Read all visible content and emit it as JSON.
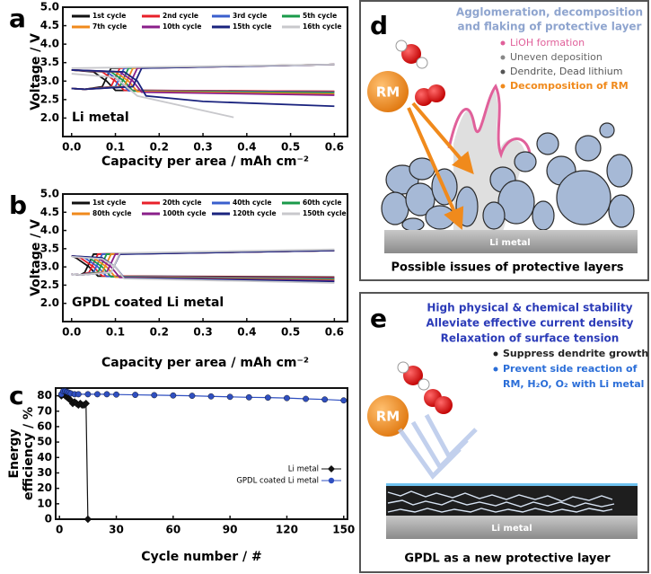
{
  "chart_data": [
    {
      "type": "line",
      "panel_label": "a",
      "xlabel": "Capacity per area / mAh cm⁻²",
      "ylabel": "Voltage / V",
      "annotation": "Li metal",
      "legend": "top",
      "xlim": [
        -0.02,
        0.63
      ],
      "ylim": [
        1.5,
        5.0
      ],
      "xticks": [
        {
          "value": 0,
          "label": "0.0"
        },
        0.1,
        0.2,
        0.3,
        0.4,
        0.5,
        0.6
      ],
      "yticks": [
        {
          "value": 2,
          "label": "2.0"
        },
        2.5,
        {
          "value": 3,
          "label": "3.0"
        },
        3.5,
        {
          "value": 4,
          "label": "4.0"
        },
        4.5,
        {
          "value": 5,
          "label": "5.0"
        }
      ],
      "series": [
        {
          "name": "1st cycle",
          "color": "#111111",
          "x": [
            0,
            0.05,
            0.08,
            0.1,
            0.6,
            null,
            0,
            0.03,
            0.07,
            0.09,
            0.6
          ],
          "values": [
            3.3,
            3.25,
            3.0,
            2.75,
            2.72,
            null,
            2.8,
            2.78,
            2.85,
            3.35,
            3.45
          ]
        },
        {
          "name": "2nd cycle",
          "color": "#e8202a",
          "x": [
            0,
            0.07,
            0.1,
            0.12,
            0.6,
            null,
            0,
            0.03,
            0.09,
            0.11,
            0.6
          ],
          "values": [
            3.3,
            3.25,
            3.0,
            2.75,
            2.72,
            null,
            2.8,
            2.78,
            2.85,
            3.35,
            3.45
          ]
        },
        {
          "name": "3rd cycle",
          "color": "#3a5fcd",
          "x": [
            0,
            0.08,
            0.11,
            0.13,
            0.6,
            null,
            0,
            0.03,
            0.1,
            0.12,
            0.6
          ],
          "values": [
            3.3,
            3.25,
            3.0,
            2.74,
            2.7,
            null,
            2.8,
            2.78,
            2.85,
            3.35,
            3.45
          ]
        },
        {
          "name": "5th cycle",
          "color": "#1a9a4a",
          "x": [
            0,
            0.09,
            0.12,
            0.14,
            0.6,
            null,
            0,
            0.03,
            0.11,
            0.13,
            0.6
          ],
          "values": [
            3.3,
            3.25,
            3.0,
            2.73,
            2.68,
            null,
            2.8,
            2.78,
            2.85,
            3.35,
            3.45
          ]
        },
        {
          "name": "7th cycle",
          "color": "#f08a1c",
          "x": [
            0,
            0.1,
            0.13,
            0.15,
            0.6,
            null,
            0,
            0.03,
            0.12,
            0.14,
            0.6
          ],
          "values": [
            3.3,
            3.25,
            3.0,
            2.72,
            2.65,
            null,
            2.8,
            2.78,
            2.85,
            3.35,
            3.45
          ]
        },
        {
          "name": "10th cycle",
          "color": "#8a1f8a",
          "x": [
            0,
            0.11,
            0.14,
            0.16,
            0.6,
            null,
            0,
            0.03,
            0.13,
            0.15,
            0.6
          ],
          "values": [
            3.3,
            3.25,
            3.0,
            2.7,
            2.62,
            null,
            2.8,
            2.78,
            2.85,
            3.35,
            3.45
          ]
        },
        {
          "name": "15th cycle",
          "color": "#1a237e",
          "x": [
            0,
            0.12,
            0.15,
            0.17,
            0.3,
            0.6,
            null,
            0,
            0.03,
            0.14,
            0.16,
            0.6
          ],
          "values": [
            3.3,
            3.25,
            3.0,
            2.6,
            2.45,
            2.32,
            null,
            2.8,
            2.78,
            2.85,
            3.35,
            3.45
          ]
        },
        {
          "name": "16th cycle",
          "color": "#c8c8cc",
          "x": [
            0,
            0.1,
            0.15,
            0.37,
            null,
            0,
            0.6
          ],
          "values": [
            3.2,
            3.1,
            2.6,
            2.02,
            null,
            3.35,
            3.45
          ]
        }
      ]
    },
    {
      "type": "line",
      "panel_label": "b",
      "xlabel": "Capacity per area / mAh cm⁻²",
      "ylabel": "Voltage / V",
      "annotation": "GPDL coated Li metal",
      "legend": "top",
      "xlim": [
        -0.02,
        0.63
      ],
      "ylim": [
        1.5,
        5.0
      ],
      "xticks": [
        {
          "value": 0,
          "label": "0.0"
        },
        0.1,
        0.2,
        0.3,
        0.4,
        0.5,
        0.6
      ],
      "yticks": [
        {
          "value": 2,
          "label": "2.0"
        },
        2.5,
        {
          "value": 3,
          "label": "3.0"
        },
        3.5,
        {
          "value": 4,
          "label": "4.0"
        },
        4.5,
        {
          "value": 5,
          "label": "5.0"
        }
      ],
      "series": [
        {
          "name": "1st cycle",
          "color": "#111111",
          "x": [
            0,
            0.01,
            0.04,
            0.06,
            0.6,
            null,
            0,
            0.02,
            0.03,
            0.05,
            0.6
          ],
          "values": [
            3.3,
            3.25,
            3.0,
            2.75,
            2.72,
            null,
            2.8,
            2.78,
            2.85,
            3.35,
            3.45
          ]
        },
        {
          "name": "20th cycle",
          "color": "#e8202a",
          "x": [
            0,
            0.02,
            0.05,
            0.07,
            0.6,
            null,
            0,
            0.02,
            0.04,
            0.06,
            0.6
          ],
          "values": [
            3.3,
            3.25,
            3.0,
            2.75,
            2.7,
            null,
            2.8,
            2.78,
            2.85,
            3.35,
            3.45
          ]
        },
        {
          "name": "40th cycle",
          "color": "#3a5fcd",
          "x": [
            0,
            0.03,
            0.06,
            0.08,
            0.6,
            null,
            0,
            0.02,
            0.05,
            0.07,
            0.6
          ],
          "values": [
            3.3,
            3.25,
            3.0,
            2.74,
            2.68,
            null,
            2.8,
            2.78,
            2.85,
            3.35,
            3.45
          ]
        },
        {
          "name": "60th cycle",
          "color": "#1a9a4a",
          "x": [
            0,
            0.04,
            0.07,
            0.09,
            0.6,
            null,
            0,
            0.02,
            0.06,
            0.08,
            0.6
          ],
          "values": [
            3.3,
            3.25,
            3.0,
            2.73,
            2.66,
            null,
            2.8,
            2.78,
            2.85,
            3.35,
            3.45
          ]
        },
        {
          "name": "80th cycle",
          "color": "#f08a1c",
          "x": [
            0,
            0.05,
            0.08,
            0.1,
            0.6,
            null,
            0,
            0.02,
            0.07,
            0.09,
            0.6
          ],
          "values": [
            3.3,
            3.25,
            3.0,
            2.72,
            2.64,
            null,
            2.8,
            2.78,
            2.85,
            3.35,
            3.45
          ]
        },
        {
          "name": "100th cycle",
          "color": "#8a1f8a",
          "x": [
            0,
            0.06,
            0.09,
            0.11,
            0.6,
            null,
            0,
            0.02,
            0.08,
            0.1,
            0.6
          ],
          "values": [
            3.3,
            3.25,
            3.0,
            2.71,
            2.62,
            null,
            2.8,
            2.78,
            2.85,
            3.35,
            3.45
          ]
        },
        {
          "name": "120th cycle",
          "color": "#1a237e",
          "x": [
            0,
            0.07,
            0.1,
            0.12,
            0.6,
            null,
            0,
            0.02,
            0.09,
            0.11,
            0.6
          ],
          "values": [
            3.3,
            3.25,
            3.0,
            2.7,
            2.6,
            null,
            2.8,
            2.78,
            2.85,
            3.35,
            3.45
          ]
        },
        {
          "name": "150th cycle",
          "color": "#c8c8cc",
          "x": [
            0,
            0.07,
            0.1,
            0.12,
            0.6,
            null,
            0,
            0.02,
            0.09,
            0.11,
            0.6
          ],
          "values": [
            3.28,
            3.22,
            3.0,
            2.68,
            2.56,
            null,
            2.8,
            2.78,
            2.85,
            3.38,
            3.48
          ]
        }
      ]
    },
    {
      "type": "line",
      "panel_label": "c",
      "xlabel": "Cycle number / #",
      "ylabel": [
        "Energy",
        "efficiency / %"
      ],
      "legend": "right",
      "xlim": [
        -2,
        152
      ],
      "ylim": [
        0,
        85
      ],
      "xticks": [
        0,
        30,
        60,
        90,
        120,
        150
      ],
      "yticks": [
        0,
        10,
        20,
        30,
        40,
        50,
        60,
        70,
        80
      ],
      "series": [
        {
          "name": "Li metal",
          "color": "#111111",
          "marker": "diamond",
          "x": [
            1,
            2,
            3,
            4,
            5,
            6,
            7,
            8,
            9,
            10,
            11,
            12,
            13,
            14,
            15
          ],
          "values": [
            80,
            81,
            80,
            79,
            78,
            77,
            75,
            76,
            75,
            74,
            75,
            74,
            74,
            75,
            0
          ]
        },
        {
          "name": "GPDL coated Li metal",
          "color": "#2f4fc0",
          "marker": "circle",
          "x": [
            1,
            2,
            3,
            4,
            5,
            6,
            8,
            10,
            15,
            20,
            25,
            30,
            40,
            50,
            60,
            70,
            80,
            90,
            100,
            110,
            120,
            130,
            140,
            150
          ],
          "values": [
            81,
            83,
            83,
            82.5,
            82,
            81.5,
            81,
            81,
            81,
            81,
            81,
            80.8,
            80.6,
            80.4,
            80.2,
            80,
            79.6,
            79.3,
            79,
            78.8,
            78.5,
            78,
            77.6,
            77
          ]
        }
      ]
    }
  ],
  "panel_d": {
    "label": "d",
    "title": [
      "Agglomeration, decomposition",
      "and flaking of protective layer"
    ],
    "legend": [
      "LiOH formation",
      "Uneven deposition",
      "Dendrite, Dead lithium",
      "Decomposition of RM"
    ],
    "rm": "RM",
    "substrate": "Li metal",
    "caption": "Possible issues of protective layers"
  },
  "panel_e": {
    "label": "e",
    "benefits": [
      "High physical & chemical stability",
      "Alleviate effective current density",
      "Relaxation of surface tension"
    ],
    "points": [
      "Suppress dendrite growth",
      "Prevent side reaction of",
      "RM, H₂O, O₂ with Li metal"
    ],
    "rm": "RM",
    "substrate": "Li metal",
    "caption": "GPDL as a new protective layer"
  }
}
